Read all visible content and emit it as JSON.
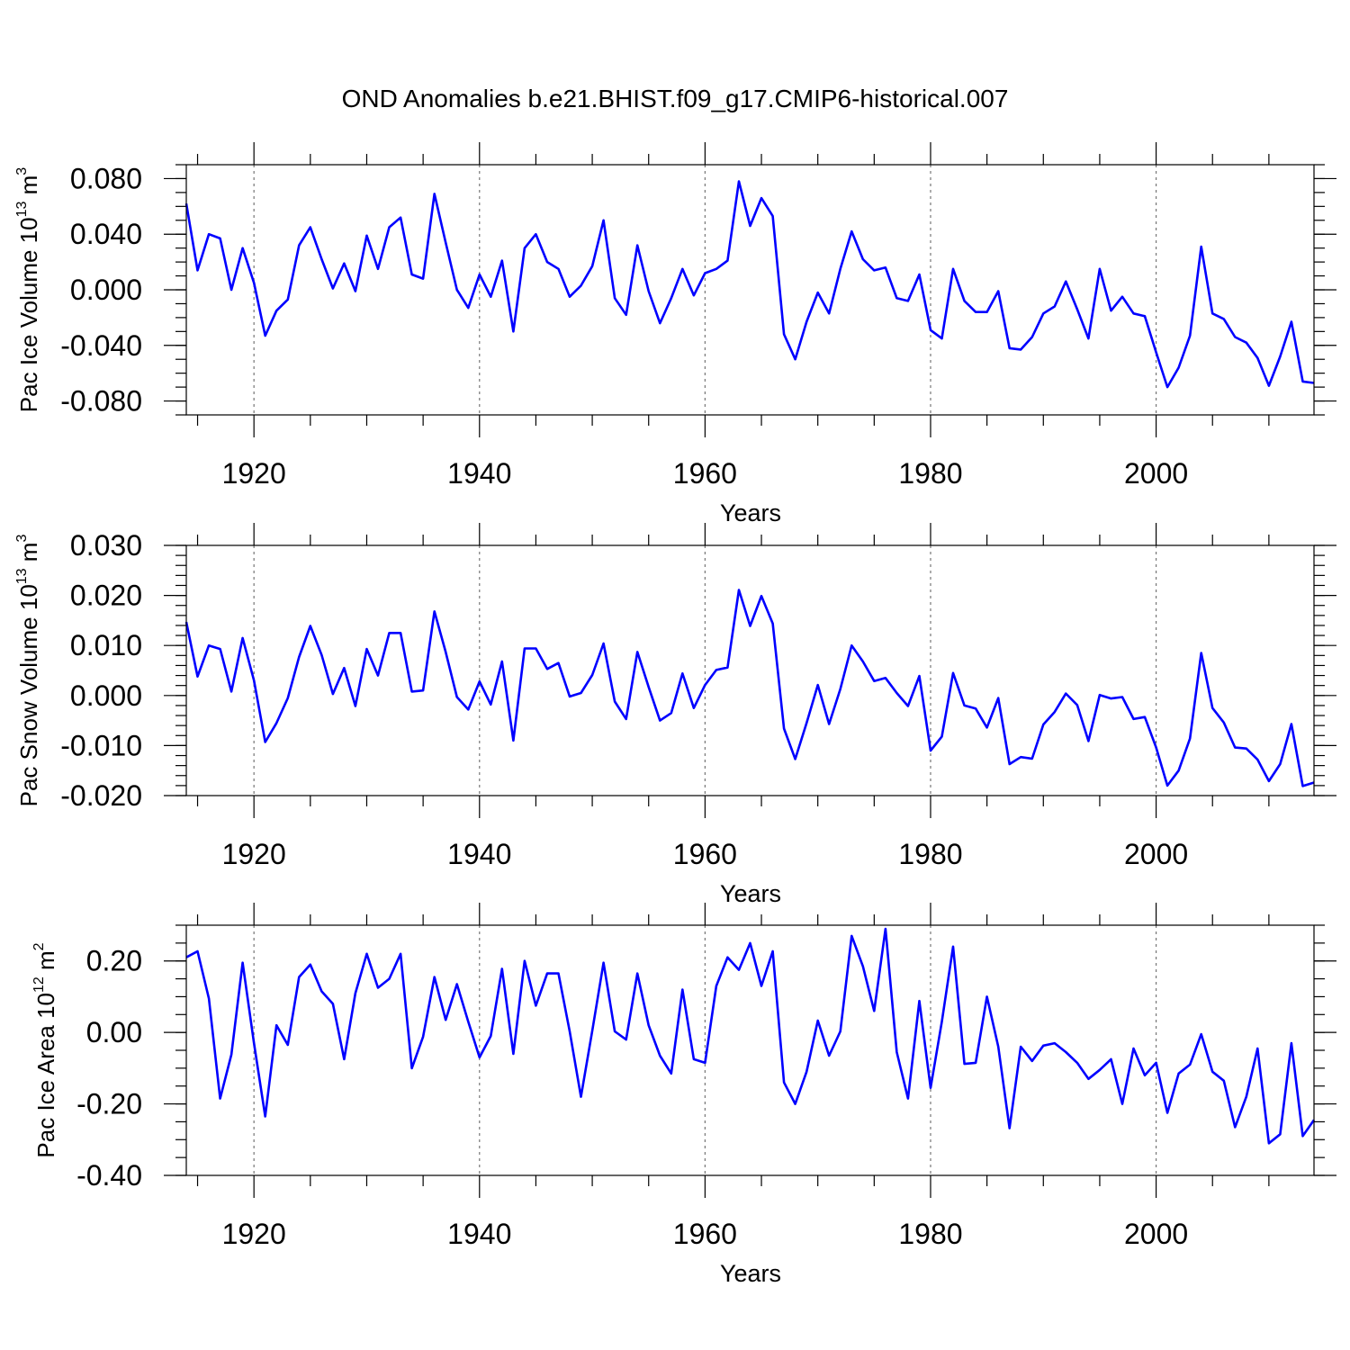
{
  "title": "OND Anomalies b.e21.BHIST.f09_g17.CMIP6-historical.007",
  "colors": {
    "line": "#0000ff",
    "grid": "#777777",
    "axis": "#000000"
  },
  "chart_data": [
    {
      "type": "line",
      "series_name": "Pac Ice Volume",
      "ylabel": {
        "main": "Pac Ice Volume 10",
        "exp1": "13",
        "unit": " m",
        "exp2": "3"
      },
      "xlabel": "Years",
      "xlim": [
        1914,
        2014
      ],
      "ylim": [
        -0.09,
        0.09
      ],
      "x_ticks": [
        1920,
        1940,
        1960,
        1980,
        2000
      ],
      "x_tick_labels": [
        "1920",
        "1940",
        "1960",
        "1980",
        "2000"
      ],
      "y_ticks": [
        -0.08,
        -0.04,
        0,
        0.04,
        0.08
      ],
      "y_tick_labels": [
        "-0.080",
        "-0.040",
        "0.000",
        "0.040",
        "0.080"
      ],
      "y_minor_step": 0.01,
      "vertical_gridlines": true,
      "x": [
        1914,
        1915,
        1916,
        1917,
        1918,
        1919,
        1920,
        1921,
        1922,
        1923,
        1924,
        1925,
        1926,
        1927,
        1928,
        1929,
        1930,
        1931,
        1932,
        1933,
        1934,
        1935,
        1936,
        1937,
        1938,
        1939,
        1940,
        1941,
        1942,
        1943,
        1944,
        1945,
        1946,
        1947,
        1948,
        1949,
        1950,
        1951,
        1952,
        1953,
        1954,
        1955,
        1956,
        1957,
        1958,
        1959,
        1960,
        1961,
        1962,
        1963,
        1964,
        1965,
        1966,
        1967,
        1968,
        1969,
        1970,
        1971,
        1972,
        1973,
        1974,
        1975,
        1976,
        1977,
        1978,
        1979,
        1980,
        1981,
        1982,
        1983,
        1984,
        1985,
        1986,
        1987,
        1988,
        1989,
        1990,
        1991,
        1992,
        1993,
        1994,
        1995,
        1996,
        1997,
        1998,
        1999,
        2000,
        2001,
        2002,
        2003,
        2004,
        2005,
        2006,
        2007,
        2008,
        2009,
        2010,
        2011,
        2012,
        2013,
        2014
      ],
      "values": [
        0.062,
        0.014,
        0.04,
        0.037,
        0.0,
        0.03,
        0.005,
        -0.033,
        -0.015,
        -0.007,
        0.032,
        0.045,
        0.022,
        0.001,
        0.019,
        -0.001,
        0.039,
        0.015,
        0.045,
        0.052,
        0.011,
        0.008,
        0.069,
        0.034,
        0.0,
        -0.013,
        0.011,
        -0.005,
        0.021,
        -0.03,
        0.03,
        0.04,
        0.02,
        0.015,
        -0.005,
        0.003,
        0.017,
        0.05,
        -0.006,
        -0.018,
        0.032,
        -0.001,
        -0.024,
        -0.006,
        0.015,
        -0.004,
        0.012,
        0.015,
        0.021,
        0.078,
        0.046,
        0.066,
        0.053,
        -0.032,
        -0.05,
        -0.023,
        -0.002,
        -0.017,
        0.015,
        0.042,
        0.022,
        0.014,
        0.016,
        -0.006,
        -0.008,
        0.011,
        -0.029,
        -0.035,
        0.015,
        -0.008,
        -0.016,
        -0.016,
        -0.001,
        -0.042,
        -0.043,
        -0.034,
        -0.017,
        -0.012,
        0.006,
        -0.014,
        -0.035,
        0.015,
        -0.015,
        -0.005,
        -0.017,
        -0.019,
        -0.045,
        -0.07,
        -0.056,
        -0.033,
        0.031,
        -0.017,
        -0.021,
        -0.034,
        -0.038,
        -0.049,
        -0.069,
        -0.048,
        -0.023,
        -0.066,
        -0.067
      ]
    },
    {
      "type": "line",
      "series_name": "Pac Snow Volume",
      "ylabel": {
        "main": "Pac Snow Volume 10",
        "exp1": "13",
        "unit": " m",
        "exp2": "3"
      },
      "xlabel": "Years",
      "xlim": [
        1914,
        2014
      ],
      "ylim": [
        -0.02,
        0.03
      ],
      "x_ticks": [
        1920,
        1940,
        1960,
        1980,
        2000
      ],
      "x_tick_labels": [
        "1920",
        "1940",
        "1960",
        "1980",
        "2000"
      ],
      "y_ticks": [
        -0.02,
        -0.01,
        0,
        0.01,
        0.02,
        0.03
      ],
      "y_tick_labels": [
        "-0.020",
        "-0.010",
        "0.000",
        "0.010",
        "0.020",
        "0.030"
      ],
      "y_minor_step": 0.002,
      "vertical_gridlines": true,
      "x": [
        1914,
        1915,
        1916,
        1917,
        1918,
        1919,
        1920,
        1921,
        1922,
        1923,
        1924,
        1925,
        1926,
        1927,
        1928,
        1929,
        1930,
        1931,
        1932,
        1933,
        1934,
        1935,
        1936,
        1937,
        1938,
        1939,
        1940,
        1941,
        1942,
        1943,
        1944,
        1945,
        1946,
        1947,
        1948,
        1949,
        1950,
        1951,
        1952,
        1953,
        1954,
        1955,
        1956,
        1957,
        1958,
        1959,
        1960,
        1961,
        1962,
        1963,
        1964,
        1965,
        1966,
        1967,
        1968,
        1969,
        1970,
        1971,
        1972,
        1973,
        1974,
        1975,
        1976,
        1977,
        1978,
        1979,
        1980,
        1981,
        1982,
        1983,
        1984,
        1985,
        1986,
        1987,
        1988,
        1989,
        1990,
        1991,
        1992,
        1993,
        1994,
        1995,
        1996,
        1997,
        1998,
        1999,
        2000,
        2001,
        2002,
        2003,
        2004,
        2005,
        2006,
        2007,
        2008,
        2009,
        2010,
        2011,
        2012,
        2013,
        2014
      ],
      "values": [
        0.0147,
        0.0038,
        0.01,
        0.0093,
        0.0008,
        0.0115,
        0.003,
        -0.0093,
        -0.0055,
        -0.0005,
        0.0077,
        0.0139,
        0.0081,
        0.0003,
        0.0055,
        -0.0021,
        0.0093,
        0.004,
        0.0125,
        0.0125,
        0.0008,
        0.001,
        0.0168,
        0.0087,
        -0.0003,
        -0.0028,
        0.0028,
        -0.0018,
        0.0068,
        -0.009,
        0.0094,
        0.0094,
        0.0053,
        0.0065,
        -0.0002,
        0.0005,
        0.0041,
        0.0104,
        -0.0012,
        -0.0047,
        0.0087,
        0.0017,
        -0.005,
        -0.0035,
        0.0044,
        -0.0025,
        0.0021,
        0.0051,
        0.0056,
        0.0211,
        0.0139,
        0.0199,
        0.0144,
        -0.0066,
        -0.0127,
        -0.0055,
        0.0021,
        -0.0057,
        0.0013,
        0.01,
        0.0068,
        0.0029,
        0.0035,
        0.0005,
        -0.0021,
        0.0039,
        -0.011,
        -0.0082,
        0.0045,
        -0.002,
        -0.0026,
        -0.0064,
        -0.0005,
        -0.0137,
        -0.0123,
        -0.0126,
        -0.0058,
        -0.0033,
        0.0004,
        -0.0019,
        -0.0091,
        0.0001,
        -0.0006,
        -0.0003,
        -0.0047,
        -0.0043,
        -0.0104,
        -0.018,
        -0.015,
        -0.0086,
        0.0085,
        -0.0025,
        -0.0054,
        -0.0104,
        -0.0106,
        -0.0128,
        -0.0171,
        -0.0137,
        -0.0057,
        -0.0181,
        -0.0174
      ]
    },
    {
      "type": "line",
      "series_name": "Pac Ice Area",
      "ylabel": {
        "main": "Pac Ice Area 10",
        "exp1": "12",
        "unit": " m",
        "exp2": "2"
      },
      "xlabel": "Years",
      "xlim": [
        1914,
        2014
      ],
      "ylim": [
        -0.4,
        0.3
      ],
      "x_ticks": [
        1920,
        1940,
        1960,
        1980,
        2000
      ],
      "x_tick_labels": [
        "1920",
        "1940",
        "1960",
        "1980",
        "2000"
      ],
      "y_ticks": [
        -0.4,
        -0.2,
        0,
        0.2
      ],
      "y_tick_labels": [
        "-0.40",
        "-0.20",
        "0.00",
        "0.20"
      ],
      "y_minor_step": 0.05,
      "vertical_gridlines": true,
      "x": [
        1914,
        1915,
        1916,
        1917,
        1918,
        1919,
        1920,
        1921,
        1922,
        1923,
        1924,
        1925,
        1926,
        1927,
        1928,
        1929,
        1930,
        1931,
        1932,
        1933,
        1934,
        1935,
        1936,
        1937,
        1938,
        1939,
        1940,
        1941,
        1942,
        1943,
        1944,
        1945,
        1946,
        1947,
        1948,
        1949,
        1950,
        1951,
        1952,
        1953,
        1954,
        1955,
        1956,
        1957,
        1958,
        1959,
        1960,
        1961,
        1962,
        1963,
        1964,
        1965,
        1966,
        1967,
        1968,
        1969,
        1970,
        1971,
        1972,
        1973,
        1974,
        1975,
        1976,
        1977,
        1978,
        1979,
        1980,
        1981,
        1982,
        1983,
        1984,
        1985,
        1986,
        1987,
        1988,
        1989,
        1990,
        1991,
        1992,
        1993,
        1994,
        1995,
        1996,
        1997,
        1998,
        1999,
        2000,
        2001,
        2002,
        2003,
        2004,
        2005,
        2006,
        2007,
        2008,
        2009,
        2010,
        2011,
        2012,
        2013,
        2014
      ],
      "values": [
        0.21,
        0.227,
        0.095,
        -0.185,
        -0.062,
        0.195,
        -0.03,
        -0.235,
        0.02,
        -0.035,
        0.155,
        0.19,
        0.115,
        0.08,
        -0.075,
        0.11,
        0.22,
        0.125,
        0.15,
        0.22,
        -0.1,
        -0.012,
        0.155,
        0.035,
        0.135,
        0.03,
        -0.07,
        -0.01,
        0.178,
        -0.06,
        0.2,
        0.075,
        0.165,
        0.165,
        0.003,
        -0.18,
        0.005,
        0.195,
        0.003,
        -0.02,
        0.165,
        0.02,
        -0.065,
        -0.115,
        0.12,
        -0.075,
        -0.085,
        0.13,
        0.21,
        0.175,
        0.25,
        0.13,
        0.227,
        -0.14,
        -0.2,
        -0.11,
        0.033,
        -0.065,
        0.003,
        0.27,
        0.185,
        0.06,
        0.29,
        -0.055,
        -0.185,
        0.088,
        -0.155,
        0.03,
        0.24,
        -0.088,
        -0.085,
        0.1,
        -0.04,
        -0.268,
        -0.04,
        -0.08,
        -0.037,
        -0.03,
        -0.055,
        -0.085,
        -0.13,
        -0.105,
        -0.075,
        -0.2,
        -0.045,
        -0.12,
        -0.085,
        -0.225,
        -0.115,
        -0.09,
        -0.005,
        -0.11,
        -0.135,
        -0.265,
        -0.18,
        -0.045,
        -0.31,
        -0.285,
        -0.03,
        -0.29,
        -0.245
      ]
    }
  ]
}
